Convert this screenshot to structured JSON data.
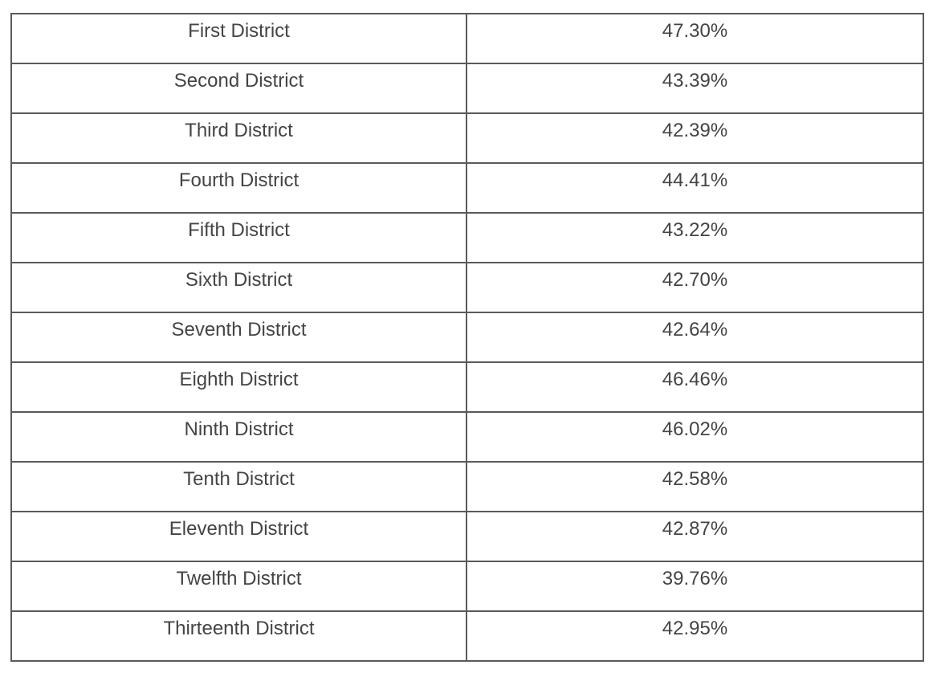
{
  "table": {
    "rows": [
      [
        "First District",
        "47.30%"
      ],
      [
        "Second District",
        "43.39%"
      ],
      [
        "Third District",
        "42.39%"
      ],
      [
        "Fourth District",
        "44.41%"
      ],
      [
        "Fifth District",
        "43.22%"
      ],
      [
        "Sixth District",
        "42.70%"
      ],
      [
        "Seventh District",
        "42.64%"
      ],
      [
        "Eighth District",
        "46.46%"
      ],
      [
        "Ninth District",
        "46.02%"
      ],
      [
        "Tenth District",
        "42.58%"
      ],
      [
        "Eleventh District",
        "42.87%"
      ],
      [
        "Twelfth District",
        "39.76%"
      ],
      [
        "Thirteenth District",
        "42.95%"
      ]
    ]
  }
}
